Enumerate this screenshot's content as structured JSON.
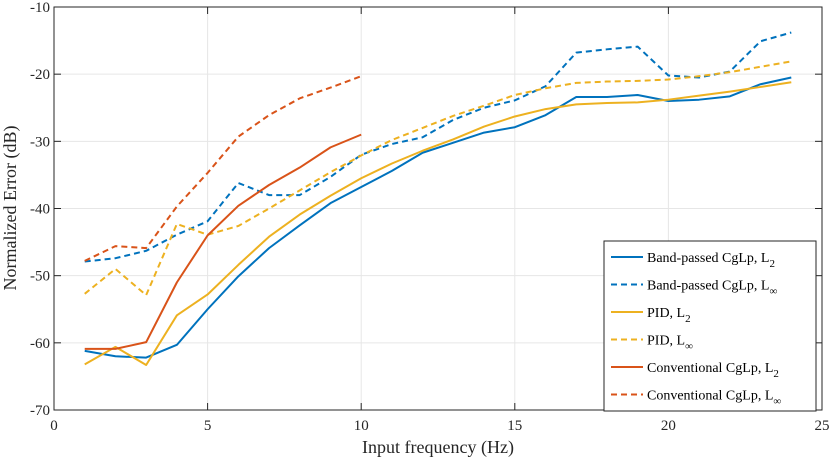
{
  "chart_data": {
    "type": "line",
    "title": "",
    "xlabel": "Input frequency (Hz)",
    "ylabel": "Normalized Error (dB)",
    "xlim": [
      0,
      25
    ],
    "ylim": [
      -70,
      -10
    ],
    "xticks": [
      0,
      5,
      10,
      15,
      20,
      25
    ],
    "yticks": [
      -70,
      -60,
      -50,
      -40,
      -30,
      -20,
      -10
    ],
    "grid": true,
    "legend_position": "right",
    "series": [
      {
        "name": "Band-passed CgLp, L2",
        "legend_main": "Band-passed CgLp, L",
        "legend_sub": "2",
        "color": "#0072BD",
        "dash": "solid",
        "x": [
          1,
          2,
          3,
          4,
          5,
          6,
          7,
          8,
          9,
          10,
          11,
          12,
          13,
          14,
          15,
          16,
          17,
          18,
          19,
          20,
          21,
          22,
          23,
          24
        ],
        "y": [
          -61.2,
          -62.0,
          -62.2,
          -60.3,
          -55.0,
          -50.1,
          -45.9,
          -42.5,
          -39.2,
          -36.8,
          -34.4,
          -31.7,
          -30.2,
          -28.7,
          -27.9,
          -26.1,
          -23.4,
          -23.4,
          -23.1,
          -24.0,
          -23.8,
          -23.3,
          -21.5,
          -20.5
        ]
      },
      {
        "name": "Band-passed CgLp, L∞",
        "legend_main": "Band-passed CgLp, L",
        "legend_sub": "∞",
        "color": "#0072BD",
        "dash": "dashed",
        "x": [
          1,
          2,
          3,
          4,
          5,
          6,
          7,
          8,
          9,
          10,
          11,
          12,
          13,
          14,
          15,
          16,
          17,
          18,
          19,
          20,
          21,
          22,
          23,
          24
        ],
        "y": [
          -47.9,
          -47.4,
          -46.3,
          -43.9,
          -41.9,
          -36.2,
          -38.0,
          -38.0,
          -35.3,
          -32.0,
          -30.4,
          -29.4,
          -26.8,
          -25.0,
          -23.9,
          -21.8,
          -16.8,
          -16.3,
          -15.9,
          -20.2,
          -20.5,
          -19.6,
          -15.1,
          -13.8
        ]
      },
      {
        "name": "PID, L2",
        "legend_main": "PID, L",
        "legend_sub": "2",
        "color": "#EDB120",
        "dash": "solid",
        "x": [
          1,
          2,
          3,
          4,
          5,
          6,
          7,
          8,
          9,
          10,
          11,
          12,
          13,
          14,
          15,
          16,
          17,
          18,
          19,
          20,
          21,
          22,
          23,
          24
        ],
        "y": [
          -63.2,
          -60.6,
          -63.3,
          -55.9,
          -52.8,
          -48.4,
          -44.2,
          -40.9,
          -38.1,
          -35.5,
          -33.3,
          -31.4,
          -29.7,
          -27.8,
          -26.3,
          -25.2,
          -24.5,
          -24.3,
          -24.2,
          -23.8,
          -23.2,
          -22.6,
          -21.9,
          -21.2
        ]
      },
      {
        "name": "PID, L∞",
        "legend_main": "PID, L",
        "legend_sub": "∞",
        "color": "#EDB120",
        "dash": "dashed",
        "x": [
          1,
          2,
          3,
          4,
          5,
          6,
          7,
          8,
          9,
          10,
          11,
          12,
          13,
          14,
          15,
          16,
          17,
          18,
          19,
          20,
          21,
          22,
          23,
          24
        ],
        "y": [
          -52.7,
          -49.0,
          -52.9,
          -42.3,
          -43.9,
          -42.6,
          -40.0,
          -37.3,
          -34.6,
          -32.1,
          -29.8,
          -28.0,
          -26.2,
          -24.7,
          -23.1,
          -22.1,
          -21.3,
          -21.1,
          -21.0,
          -20.8,
          -20.3,
          -19.7,
          -18.9,
          -18.1
        ]
      },
      {
        "name": "Conventional CgLp, L2",
        "legend_main": "Conventional CgLp, L",
        "legend_sub": "2",
        "color": "#D95319",
        "dash": "solid",
        "x": [
          1,
          2,
          3,
          4,
          5,
          6,
          7,
          8,
          9,
          10
        ],
        "y": [
          -60.9,
          -60.9,
          -59.9,
          -51.0,
          -44.0,
          -39.6,
          -36.5,
          -33.9,
          -30.9,
          -29.0
        ]
      },
      {
        "name": "Conventional CgLp, L∞",
        "legend_main": "Conventional CgLp, L",
        "legend_sub": "∞",
        "color": "#D95319",
        "dash": "dashed",
        "x": [
          1,
          2,
          3,
          4,
          5,
          6,
          7,
          8,
          9,
          10
        ],
        "y": [
          -47.8,
          -45.6,
          -45.9,
          -39.7,
          -34.7,
          -29.3,
          -26.1,
          -23.6,
          -22.0,
          -20.3
        ]
      }
    ]
  }
}
